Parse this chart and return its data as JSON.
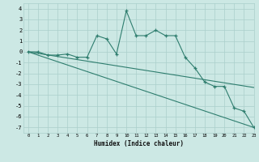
{
  "xlabel": "Humidex (Indice chaleur)",
  "x": [
    0,
    1,
    2,
    3,
    4,
    5,
    6,
    7,
    8,
    9,
    10,
    11,
    12,
    13,
    14,
    15,
    16,
    17,
    18,
    19,
    20,
    21,
    22,
    23
  ],
  "line1": [
    0,
    0,
    -0.3,
    -0.3,
    -0.2,
    -0.5,
    -0.5,
    1.5,
    1.2,
    -0.2,
    3.8,
    1.5,
    1.5,
    2.0,
    1.5,
    1.5,
    -0.5,
    -1.5,
    -2.8,
    -3.2,
    -3.2,
    -5.2,
    -5.5,
    -7.0
  ],
  "line2_x": [
    0,
    23
  ],
  "line2_y": [
    0,
    -3.3
  ],
  "line3_x": [
    0,
    23
  ],
  "line3_y": [
    0,
    -7.0
  ],
  "color": "#2e7d6e",
  "bg_color": "#cce8e4",
  "grid_color": "#aacfcb",
  "ylim": [
    -7.5,
    4.5
  ],
  "xlim": [
    -0.5,
    23
  ],
  "yticks": [
    -7,
    -6,
    -5,
    -4,
    -3,
    -2,
    -1,
    0,
    1,
    2,
    3,
    4
  ],
  "xticks": [
    0,
    1,
    2,
    3,
    4,
    5,
    6,
    7,
    8,
    9,
    10,
    11,
    12,
    13,
    14,
    15,
    16,
    17,
    18,
    19,
    20,
    21,
    22,
    23
  ]
}
